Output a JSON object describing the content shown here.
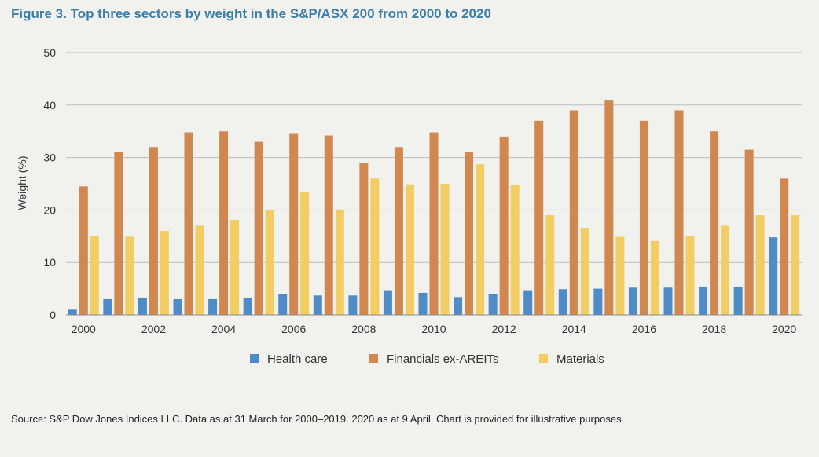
{
  "title": "Figure 3. Top three sectors by weight in the S&P/ASX 200 from 2000 to 2020",
  "source": "Source: S&P Dow Jones Indices LLC. Data as at 31 March for 2000–2019. 2020 as at 9 April. Chart is provided for illustrative purposes.",
  "colors": {
    "health_care": "#4f8bc6",
    "financials": "#d08850",
    "materials": "#f1cd63",
    "grid": "#bdbdbd",
    "title": "#3d7ea6"
  },
  "chart_data": {
    "type": "bar",
    "title": "Figure 3. Top three sectors by weight in the S&P/ASX 200 from 2000 to 2020",
    "xlabel": "",
    "ylabel": "Weight (%)",
    "ylim": [
      0,
      50
    ],
    "yticks": [
      0,
      10,
      20,
      30,
      40,
      50
    ],
    "grid": true,
    "legend_position": "bottom",
    "categories": [
      "2000",
      "2001",
      "2002",
      "2003",
      "2004",
      "2005",
      "2006",
      "2007",
      "2008",
      "2009",
      "2010",
      "2011",
      "2012",
      "2013",
      "2014",
      "2015",
      "2016",
      "2017",
      "2018",
      "2019",
      "2020"
    ],
    "xtick_labels": [
      "2000",
      "",
      "2002",
      "",
      "2004",
      "",
      "2006",
      "",
      "2008",
      "",
      "2010",
      "",
      "2012",
      "",
      "2014",
      "",
      "2016",
      "",
      "2018",
      "",
      "2020"
    ],
    "series": [
      {
        "name": "Health care",
        "color": "#4f8bc6",
        "values": [
          1.0,
          3.0,
          3.3,
          3.0,
          3.0,
          3.3,
          4.0,
          3.7,
          3.7,
          4.7,
          4.2,
          3.4,
          4.0,
          4.7,
          4.9,
          5.0,
          5.2,
          5.2,
          5.4,
          5.4,
          14.8
        ]
      },
      {
        "name": "Financials ex-AREITs",
        "color": "#d08850",
        "values": [
          24.5,
          31.0,
          32.0,
          34.8,
          35.0,
          33.0,
          34.5,
          34.2,
          29.0,
          32.0,
          34.8,
          31.0,
          34.0,
          37.0,
          39.0,
          41.0,
          37.0,
          39.0,
          35.0,
          31.5,
          26.0
        ]
      },
      {
        "name": "Materials",
        "color": "#f1cd63",
        "values": [
          15.0,
          14.9,
          16.0,
          17.0,
          18.1,
          20.0,
          23.4,
          20.0,
          26.0,
          24.9,
          25.0,
          28.7,
          24.8,
          19.0,
          16.6,
          14.9,
          14.1,
          15.1,
          17.0,
          19.0,
          19.0
        ]
      }
    ]
  }
}
